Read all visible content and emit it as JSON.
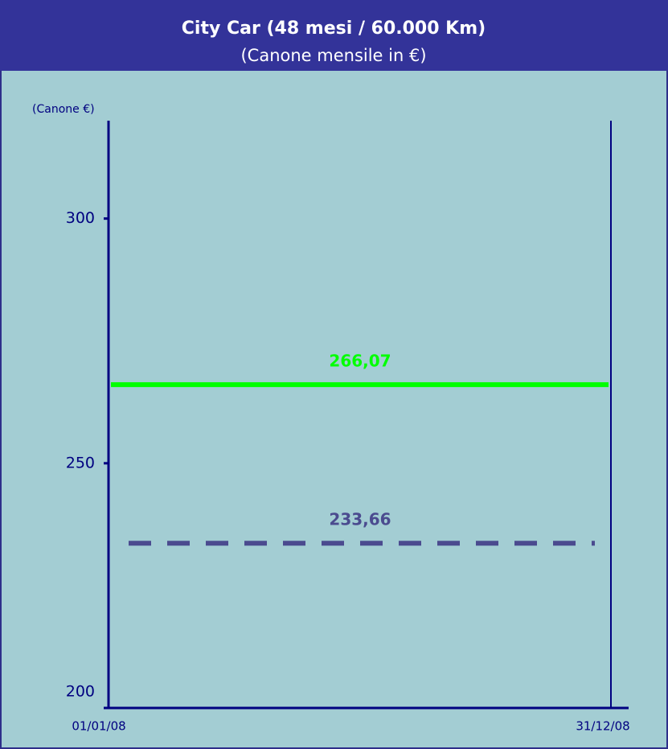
{
  "chart_data": {
    "type": "line",
    "title": "City Car (48 mesi / 60.000 Km)",
    "subtitle": "(Canone mensile in €)",
    "y_label": "(Canone €)",
    "categories": [
      "01/01/08",
      "31/12/08"
    ],
    "ylim": [
      200,
      320
    ],
    "yticks": [
      200,
      250,
      300
    ],
    "series": [
      {
        "value": 266.07,
        "value_label": "266,07",
        "color": "#00ff00",
        "dashed": false
      },
      {
        "value": 233.66,
        "value_label": "233,66",
        "color": "#4b4b8f",
        "dashed": true
      }
    ]
  }
}
